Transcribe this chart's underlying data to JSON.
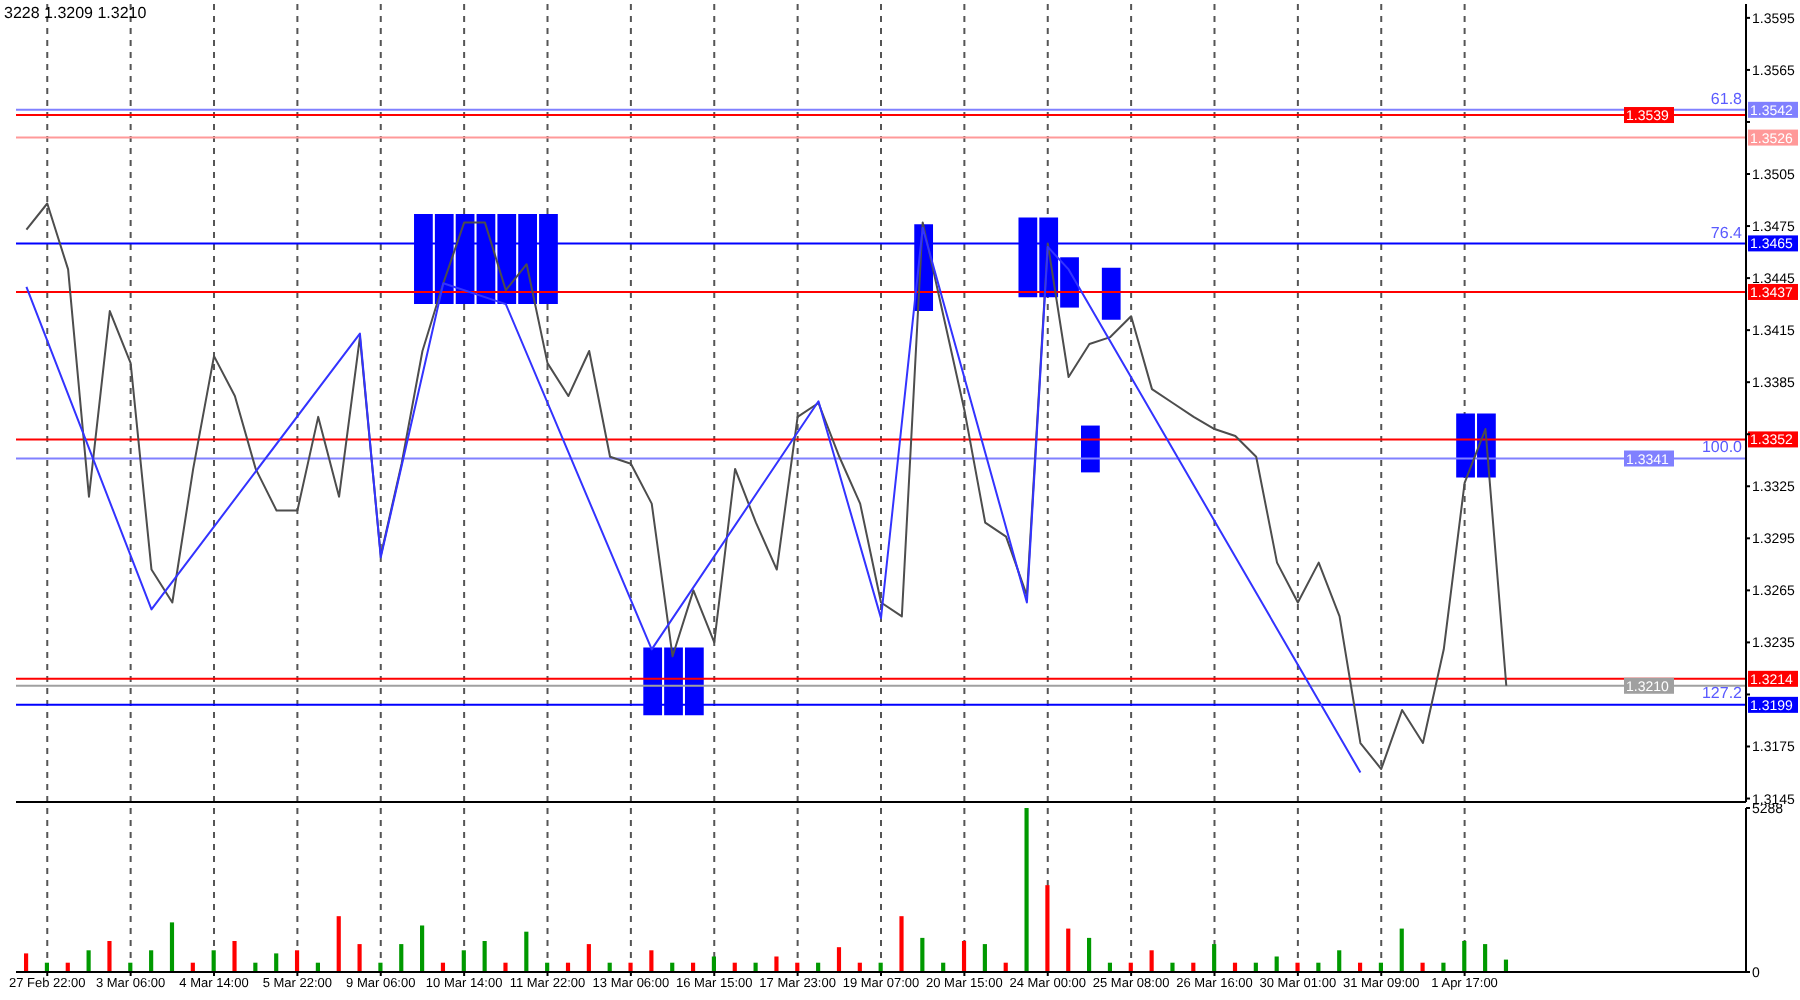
{
  "chart_data": [
    {
      "type": "line",
      "tick_labels": "y",
      "grid": "x",
      "marker": "none",
      "line_style": "solid",
      "ylim": [
        1.3143,
        1.3603
      ],
      "categories": [
        null,
        null,
        null,
        null,
        null,
        null,
        null,
        null,
        null,
        null,
        null,
        null,
        null,
        null,
        null,
        null,
        null,
        null,
        null,
        null,
        null,
        null,
        null,
        null,
        null,
        null,
        null,
        null,
        null,
        null,
        null,
        null,
        null,
        null,
        null,
        null,
        null,
        null,
        null,
        null,
        null,
        null,
        null,
        null,
        null,
        null,
        null,
        null,
        null,
        null,
        null,
        null,
        null,
        null,
        null,
        null,
        null,
        null,
        null,
        null,
        null,
        null,
        null,
        null,
        null,
        null,
        null,
        null,
        null,
        null,
        null,
        null,
        null,
        null,
        null,
        null,
        null,
        null,
        null,
        null,
        null,
        null,
        null
      ],
      "yticks": [
        1.3145,
        1.3175,
        {
          "value": 1.3205,
          "label": null
        },
        1.3235,
        1.3265,
        1.3295,
        1.3325,
        {
          "value": 1.3355,
          "label": null
        },
        1.3385,
        1.3415,
        1.3445,
        1.3475,
        1.3505,
        {
          "value": 1.3535,
          "label": null
        },
        1.3565,
        1.3595
      ],
      "annotations": [
        "3228 1.3209 1.3210",
        {
          "text": "61.8",
          "y": 1.3542
        },
        {
          "text": "76.4",
          "y": 1.3465
        },
        {
          "text": "100.0",
          "y": 1.3341
        },
        {
          "text": "127.2",
          "y": 1.3199
        }
      ],
      "ref_lines": [
        {
          "axis": "y",
          "value": 1.3542,
          "label": "1.3542",
          "color": "#8080ff"
        },
        {
          "axis": "y",
          "value": 1.3539,
          "label": "1.3539",
          "color": "#ff0000"
        },
        {
          "axis": "y",
          "value": 1.3526,
          "label": "1.3526",
          "color": "#ff9999"
        },
        {
          "axis": "y",
          "value": 1.3465,
          "label": "1.3465",
          "color": "#0000ff"
        },
        {
          "axis": "y",
          "value": 1.3437,
          "label": "1.3437",
          "color": "#ff0000"
        },
        {
          "axis": "y",
          "value": 1.3352,
          "label": "1.3352",
          "color": "#ff0000"
        },
        {
          "axis": "y",
          "value": 1.3341,
          "label": "1.3341",
          "color": "#8080ff"
        },
        {
          "axis": "y",
          "value": 1.3214,
          "label": "1.3214",
          "color": "#ff0000"
        },
        {
          "axis": "y",
          "value": 1.321,
          "label": "1.3210",
          "color": "#a0a0a0"
        },
        {
          "axis": "y",
          "value": 1.3199,
          "label": "1.3199",
          "color": "#0000ff"
        }
      ],
      "series": [
        {
          "type": "bar",
          "color": "#0000ff",
          "base": [
            null,
            null,
            null,
            null,
            null,
            null,
            null,
            null,
            null,
            null,
            null,
            null,
            null,
            null,
            null,
            null,
            null,
            null,
            null,
            1.343,
            1.343,
            1.343,
            1.343,
            1.343,
            1.343,
            1.343,
            null,
            null,
            null,
            null,
            1.3193,
            1.3193,
            1.3193,
            null,
            null,
            null,
            null,
            null,
            null,
            null,
            null,
            null,
            null,
            1.3426,
            null,
            null,
            null,
            null,
            1.3434,
            1.3434,
            1.3428,
            1.3333,
            1.3421,
            null,
            null,
            null,
            null,
            null,
            null,
            null,
            null,
            null,
            null,
            null,
            null,
            null,
            null,
            null,
            null,
            1.333,
            1.333,
            null,
            null,
            null,
            null,
            null,
            null,
            null,
            null,
            null,
            null,
            null,
            null
          ],
          "values": [
            null,
            null,
            null,
            null,
            null,
            null,
            null,
            null,
            null,
            null,
            null,
            null,
            null,
            null,
            null,
            null,
            null,
            null,
            null,
            0.0052,
            0.0052,
            0.0052,
            0.0052,
            0.0052,
            0.0052,
            0.0052,
            null,
            null,
            null,
            null,
            0.0039,
            0.0039,
            0.0039,
            null,
            null,
            null,
            null,
            null,
            null,
            null,
            null,
            null,
            null,
            0.005,
            null,
            null,
            null,
            null,
            0.0046,
            0.0046,
            0.0029,
            0.0027,
            0.003,
            null,
            null,
            null,
            null,
            null,
            null,
            null,
            null,
            null,
            null,
            null,
            null,
            null,
            null,
            null,
            null,
            0.0037,
            0.0037,
            null,
            null,
            null,
            null,
            null,
            null,
            null,
            null,
            null,
            null,
            null,
            null
          ]
        },
        {
          "color": "#4d4d4d",
          "values": [
            1.3473,
            1.3488,
            1.345,
            1.3319,
            1.3426,
            1.3396,
            1.3277,
            1.3258,
            1.3335,
            1.34,
            1.3377,
            1.3335,
            1.3311,
            1.3311,
            1.3365,
            1.3319,
            1.3411,
            1.3285,
            1.3338,
            1.3403,
            1.3442,
            1.3477,
            1.3477,
            1.3438,
            1.3453,
            1.3396,
            1.3377,
            1.3403,
            1.3342,
            1.3338,
            1.3315,
            1.3227,
            1.3265,
            1.3235,
            1.3335,
            1.3304,
            1.3277,
            1.3365,
            1.3373,
            1.3342,
            1.3315,
            1.3258,
            1.325,
            1.3477,
            1.3423,
            1.3369,
            1.3304,
            1.3296,
            1.3262,
            1.3465,
            1.3388,
            1.3407,
            1.3411,
            1.3423,
            1.3381,
            1.3373,
            1.3365,
            1.3358,
            1.3354,
            1.3342,
            1.3281,
            1.3258,
            1.3281,
            1.325,
            1.3177,
            1.3162,
            1.3196,
            1.3177,
            1.3231,
            1.3327,
            1.3358,
            1.321,
            null,
            null,
            null,
            null,
            null,
            null,
            null,
            null,
            null,
            null,
            null
          ]
        },
        {
          "color": "#3333ff",
          "values": [
            1.344,
            null,
            null,
            null,
            null,
            null,
            1.3254,
            null,
            null,
            null,
            null,
            null,
            null,
            null,
            null,
            null,
            1.3413,
            1.3284,
            null,
            null,
            1.3442,
            null,
            null,
            1.343,
            null,
            null,
            null,
            null,
            null,
            null,
            1.3231,
            null,
            null,
            null,
            null,
            null,
            null,
            null,
            1.3374,
            null,
            null,
            1.3249,
            null,
            1.3474,
            null,
            null,
            null,
            null,
            1.3258,
            1.3463,
            1.345,
            null,
            null,
            null,
            null,
            null,
            null,
            null,
            null,
            null,
            null,
            null,
            null,
            null,
            1.316,
            null,
            null,
            null,
            null,
            null,
            null,
            null,
            null,
            null,
            null,
            null,
            null,
            null,
            null,
            null,
            null,
            null,
            null
          ]
        }
      ]
    },
    {
      "type": "bar",
      "grid": "x",
      "ylim": [
        0,
        5288
      ],
      "yticks": [
        0,
        5288
      ],
      "categories": [
        null,
        "27 Feb 22:00",
        null,
        null,
        null,
        "3 Mar 06:00",
        null,
        null,
        null,
        "4 Mar 14:00",
        null,
        null,
        null,
        "5 Mar 22:00",
        null,
        null,
        null,
        "9 Mar 06:00",
        null,
        null,
        null,
        "10 Mar 14:00",
        null,
        null,
        null,
        "11 Mar 22:00",
        null,
        null,
        null,
        "13 Mar 06:00",
        null,
        null,
        null,
        "16 Mar 15:00",
        null,
        null,
        null,
        "17 Mar 23:00",
        null,
        null,
        null,
        "19 Mar 07:00",
        null,
        null,
        null,
        "20 Mar 15:00",
        null,
        null,
        null,
        "24 Mar 00:00",
        null,
        null,
        null,
        "25 Mar 08:00",
        null,
        null,
        null,
        "26 Mar 16:00",
        null,
        null,
        null,
        "30 Mar 01:00",
        null,
        null,
        null,
        "31 Mar 09:00",
        null,
        null,
        null,
        "1 Apr 17:00",
        null,
        null,
        null,
        null,
        null,
        null,
        null,
        null,
        null,
        null,
        null,
        null,
        null
      ],
      "values": [
        600,
        300,
        300,
        700,
        1000,
        300,
        700,
        1600,
        300,
        700,
        1000,
        300,
        600,
        700,
        300,
        1800,
        900,
        300,
        900,
        1500,
        300,
        700,
        1000,
        300,
        1300,
        300,
        300,
        900,
        300,
        300,
        700,
        300,
        300,
        500,
        300,
        300,
        500,
        300,
        300,
        800,
        300,
        300,
        1800,
        1100,
        300,
        1000,
        900,
        300,
        5288,
        2800,
        1400,
        1100,
        300,
        300,
        700,
        300,
        300,
        900,
        300,
        300,
        500,
        300,
        300,
        700,
        300,
        300,
        1400,
        300,
        300,
        1000,
        900,
        400,
        null,
        null,
        null,
        null,
        null,
        null,
        null,
        null,
        null,
        null,
        null
      ],
      "colors": [
        "#ff0000",
        "#009900",
        "#ff0000",
        "#009900",
        "#ff0000",
        "#009900",
        "#009900",
        "#009900",
        "#ff0000",
        "#009900",
        "#ff0000",
        "#009900",
        "#009900",
        "#ff0000",
        "#009900",
        "#ff0000",
        "#ff0000",
        "#009900",
        "#009900",
        "#009900",
        "#ff0000",
        "#009900",
        "#009900",
        "#ff0000",
        "#009900",
        "#009900",
        "#ff0000",
        "#ff0000",
        "#009900",
        "#ff0000",
        "#ff0000",
        "#009900",
        "#ff0000",
        "#009900",
        "#ff0000",
        "#009900",
        "#ff0000",
        "#ff0000",
        "#009900",
        "#ff0000",
        "#ff0000",
        "#009900",
        "#ff0000",
        "#009900",
        "#009900",
        "#ff0000",
        "#009900",
        "#ff0000",
        "#009900",
        "#ff0000",
        "#ff0000",
        "#009900",
        "#009900",
        "#ff0000",
        "#ff0000",
        "#009900",
        "#ff0000",
        "#009900",
        "#ff0000",
        "#009900",
        "#009900",
        "#ff0000",
        "#009900",
        "#009900",
        "#ff0000",
        "#009900",
        "#009900",
        "#ff0000",
        "#009900",
        "#009900",
        "#009900",
        "#009900",
        "#009900",
        "#009900",
        "#009900",
        "#009900",
        "#009900",
        "#009900",
        "#009900",
        "#009900",
        "#009900",
        "#009900",
        "#009900"
      ]
    }
  ]
}
